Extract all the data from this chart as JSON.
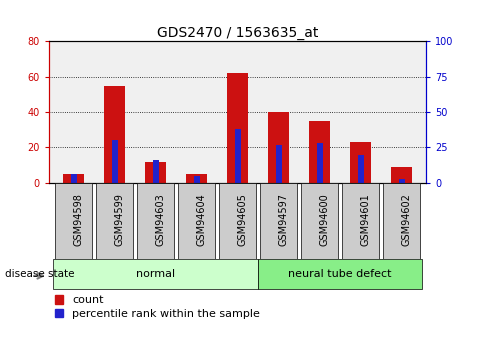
{
  "title": "GDS2470 / 1563635_at",
  "samples": [
    "GSM94598",
    "GSM94599",
    "GSM94603",
    "GSM94604",
    "GSM94605",
    "GSM94597",
    "GSM94600",
    "GSM94601",
    "GSM94602"
  ],
  "count_values": [
    5,
    55,
    12,
    5,
    62,
    40,
    35,
    23,
    9
  ],
  "percentile_values": [
    6,
    30,
    16,
    5,
    38,
    27,
    28,
    20,
    3
  ],
  "groups": [
    {
      "label": "normal",
      "start": 0,
      "end": 5,
      "color": "#ccffcc"
    },
    {
      "label": "neural tube defect",
      "start": 5,
      "end": 9,
      "color": "#88ee88"
    }
  ],
  "ylim_left": [
    0,
    80
  ],
  "ylim_right": [
    0,
    100
  ],
  "yticks_left": [
    0,
    20,
    40,
    60,
    80
  ],
  "yticks_right": [
    0,
    25,
    50,
    75,
    100
  ],
  "left_axis_color": "#cc0000",
  "right_axis_color": "#0000cc",
  "bar_color_count": "#cc1111",
  "bar_color_pct": "#2222cc",
  "legend_label_count": "count",
  "legend_label_pct": "percentile rank within the sample",
  "disease_state_label": "disease state",
  "background_plot": "#f0f0f0",
  "tick_label_bg": "#cccccc",
  "grid_color": "#000000",
  "title_fontsize": 10,
  "axis_fontsize": 7,
  "legend_fontsize": 8,
  "group_label_fontsize": 8,
  "normal_color": "#ccffcc",
  "defect_color": "#88ee88"
}
